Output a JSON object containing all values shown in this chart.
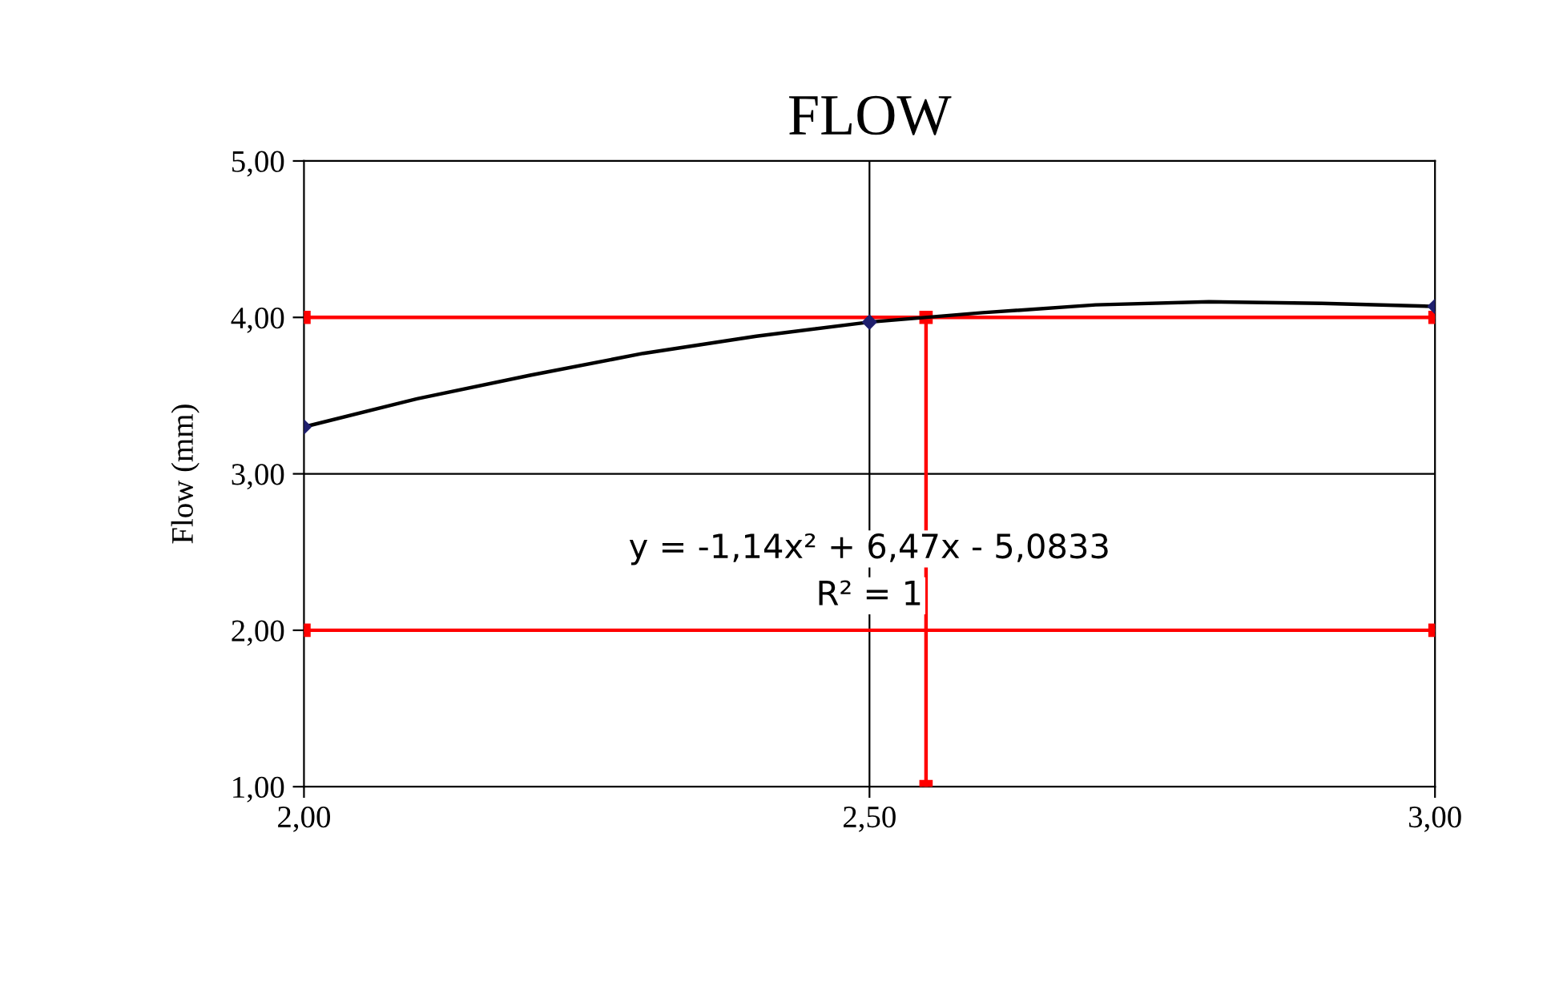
{
  "chart_data": {
    "type": "line",
    "title": "FLOW",
    "ylabel": "Flow (mm)",
    "xlim": [
      2.0,
      3.0
    ],
    "xticks": [
      {
        "value": 2.0,
        "label": "2,00"
      },
      {
        "value": 2.5,
        "label": "2,50"
      },
      {
        "value": 3.0,
        "label": "3,00"
      }
    ],
    "ylim": [
      1.0,
      5.0
    ],
    "yticks": [
      {
        "value": 1,
        "label": "1,00"
      },
      {
        "value": 2,
        "label": "2,00"
      },
      {
        "value": 3,
        "label": "3,00"
      },
      {
        "value": 4,
        "label": "4,00"
      },
      {
        "value": 5,
        "label": "5,00"
      }
    ],
    "ref_lines": [
      {
        "axis": "x",
        "value": 2.5,
        "color": "#000000"
      },
      {
        "axis": "y",
        "value": 3,
        "color": "#000000"
      }
    ],
    "series": [
      {
        "color": "#ff0000",
        "marker": "square",
        "x": [
          2.0,
          3.0
        ],
        "values": [
          4.0,
          4.0
        ]
      },
      {
        "color": "#ff0000",
        "marker": "square",
        "x": [
          2.0,
          3.0
        ],
        "values": [
          2.0,
          2.0
        ]
      },
      {
        "color": "#ff0000",
        "marker": "square",
        "x": [
          2.55,
          2.55
        ],
        "values": [
          1.0,
          4.0
        ]
      },
      {
        "color": "#000000",
        "marker": "none",
        "x": [
          2.0,
          2.1,
          2.2,
          2.3,
          2.4,
          2.5,
          2.6,
          2.7,
          2.8,
          2.9,
          3.0
        ],
        "values": [
          3.3,
          3.48,
          3.63,
          3.77,
          3.88,
          3.97,
          4.03,
          4.08,
          4.1,
          4.09,
          4.07
        ]
      },
      {
        "type": "scatter",
        "color": "#1f1f6e",
        "marker": "diamond",
        "x": [
          2.0,
          2.5,
          3.0
        ],
        "values": [
          3.3,
          3.97,
          4.07
        ]
      }
    ],
    "annotations": [
      "y = -1,14x² + 6,47x - 5,0833",
      "R² = 1"
    ]
  }
}
